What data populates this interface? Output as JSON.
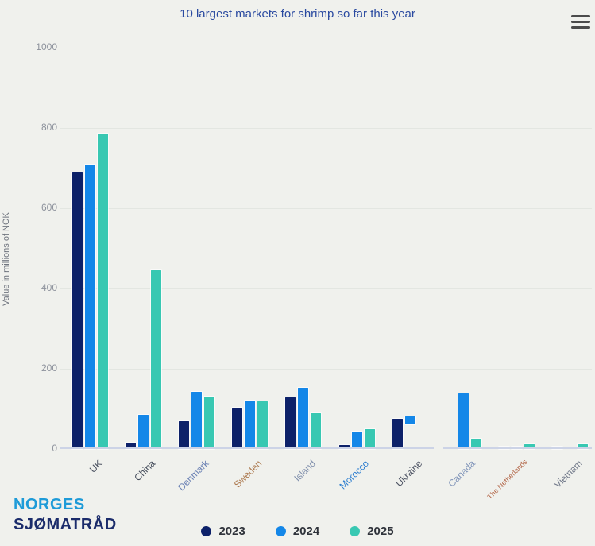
{
  "header": {
    "menu_icon": "hamburger-icon"
  },
  "logo": {
    "line1": "NORGES",
    "line2": "SJØMATRÅD"
  },
  "colors": {
    "background": "#f0f1ed",
    "title": "#2a4aa0",
    "gridline": "#e3e6e1",
    "axis_line": "#ccd3e6",
    "tick_label": "#8d929c",
    "axis_title": "#70757f",
    "legend_text": "#2f333b",
    "logo_blue": "#1e9bd8",
    "logo_navy": "#1b2c6b"
  },
  "chart_data": {
    "type": "bar",
    "title": "10 largest markets for shrimp so far this year",
    "xlabel": "",
    "ylabel": "Value in millions of NOK",
    "ylim": [
      0,
      1000
    ],
    "yticks": [
      0,
      200,
      400,
      600,
      800,
      1000
    ],
    "grid": true,
    "legend_position": "bottom",
    "categories": [
      "UK",
      "China",
      "Denmark",
      "Sweden",
      "Island",
      "Morocco",
      "Ukraine",
      "Canada",
      "The Netherlands",
      "Vietnam"
    ],
    "category_label_colors": [
      "#4b5261",
      "#434b5a",
      "#6d83b5",
      "#ad7a50",
      "#8291ad",
      "#2e7fd0",
      "#4f5565",
      "#8296ba",
      "#b06040",
      "#707889"
    ],
    "series": [
      {
        "name": "2023",
        "color": "#0d2169",
        "values": [
          690,
          15,
          69,
          103,
          129,
          9,
          75,
          null,
          5,
          5
        ]
      },
      {
        "name": "2024",
        "color": "#1487e8",
        "values": [
          708,
          86,
          142,
          121,
          152,
          44,
          {
            "from": 61,
            "to": 81
          },
          139,
          5,
          null
        ]
      },
      {
        "name": "2025",
        "color": "#38c8b2",
        "values": [
          786,
          446,
          131,
          119,
          89,
          50,
          null,
          26,
          11,
          11
        ]
      }
    ]
  }
}
